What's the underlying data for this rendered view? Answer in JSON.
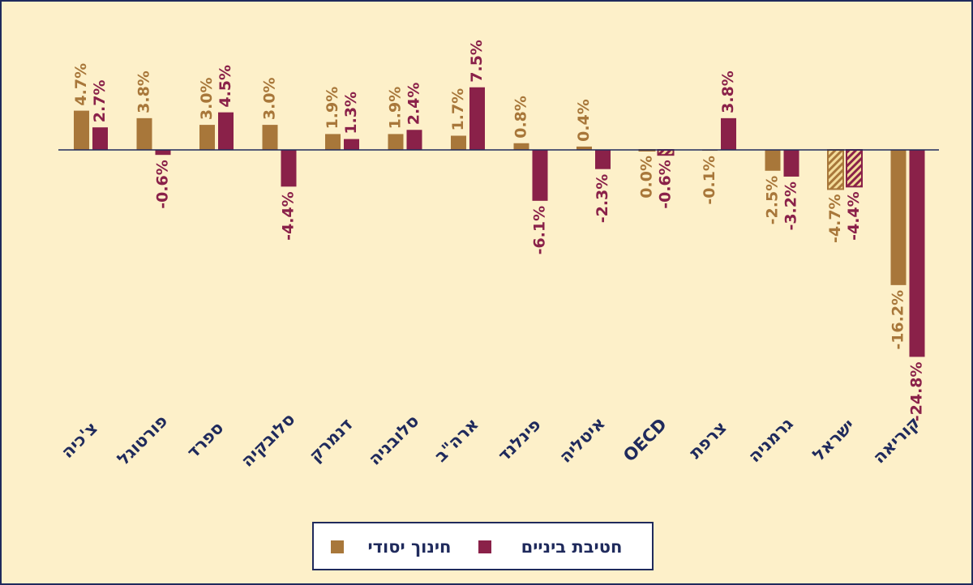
{
  "chart_data": {
    "type": "bar",
    "categories": [
      "צ'כיה",
      "פורטוגל",
      "ספרד",
      "סלובקיה",
      "דנמרק",
      "סלובניה",
      "ארה\"ב",
      "פינלנד",
      "איטליה",
      "OECD",
      "צרפת",
      "גרמניה",
      "ישראל",
      "קוריאה"
    ],
    "series": [
      {
        "name": "חינוך יסודי",
        "color": "#a8773a",
        "values": [
          4.7,
          3.8,
          3.0,
          3.0,
          1.9,
          1.9,
          1.7,
          0.8,
          0.4,
          0.0,
          -0.1,
          -2.5,
          -4.7,
          -16.2
        ],
        "value_labels": [
          "4.7%",
          "3.8%",
          "3.0%",
          "3.0%",
          "1.9%",
          "1.9%",
          "1.7%",
          "0.8%",
          "0.4%",
          "0.0%",
          "-0.1%",
          "-2.5%",
          "-4.7%",
          "-16.2%"
        ]
      },
      {
        "name": "חטיבת ביניים",
        "color": "#8a2149",
        "values": [
          2.7,
          -0.6,
          4.5,
          -4.4,
          1.3,
          2.4,
          7.5,
          -6.1,
          -2.3,
          -0.6,
          3.8,
          -3.2,
          -4.4,
          -24.8
        ],
        "value_labels": [
          "2.7%",
          "-0.6%",
          "4.5%",
          "-4.4%",
          "1.3%",
          "2.4%",
          "7.5%",
          "-6.1%",
          "-2.3%",
          "-0.6%",
          "3.8%",
          "-3.2%",
          "-4.4%",
          "-24.8%"
        ]
      }
    ],
    "hatched_categories": [
      "OECD",
      "ישראל"
    ],
    "legend": "bottom"
  }
}
